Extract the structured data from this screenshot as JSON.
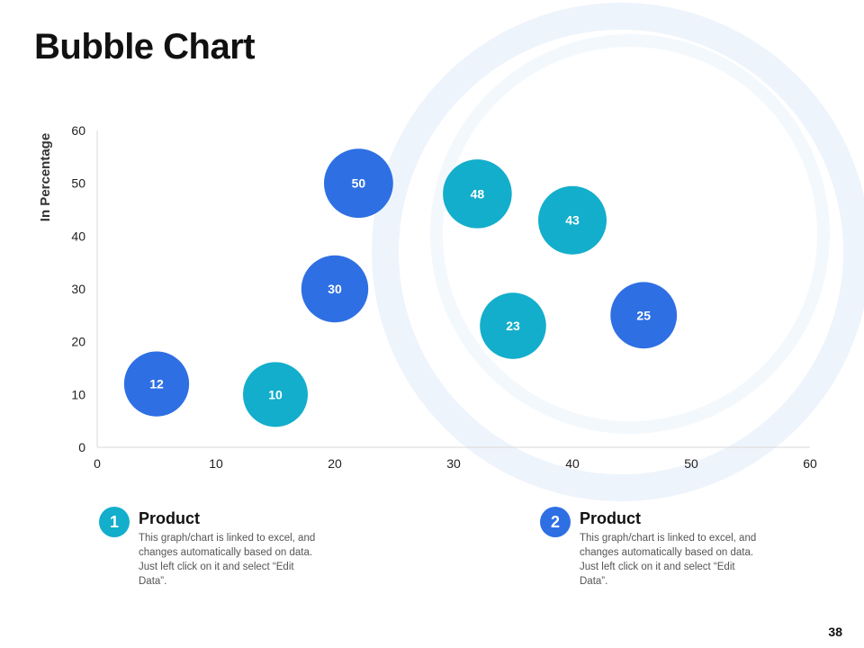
{
  "slide": {
    "title": "Bubble Chart",
    "page_number": "38"
  },
  "colors": {
    "teal": "#13AECB",
    "blue": "#2E6FE3"
  },
  "chart_data": {
    "type": "bubble",
    "title": "Bubble Chart",
    "xlabel": "",
    "ylabel": "In Percentage",
    "xlim": [
      0,
      60
    ],
    "ylim": [
      0,
      60
    ],
    "xticks": [
      0,
      10,
      20,
      30,
      40,
      50,
      60
    ],
    "yticks": [
      0,
      10,
      20,
      30,
      40,
      50,
      60
    ],
    "series": [
      {
        "name": "Product 1",
        "color": "#13AECB",
        "points": [
          {
            "x": 15,
            "y": 10,
            "size": 10
          },
          {
            "x": 32,
            "y": 48,
            "size": 48
          },
          {
            "x": 35,
            "y": 23,
            "size": 23
          },
          {
            "x": 40,
            "y": 43,
            "size": 43
          }
        ]
      },
      {
        "name": "Product 2",
        "color": "#2E6FE3",
        "points": [
          {
            "x": 5,
            "y": 12,
            "size": 12
          },
          {
            "x": 20,
            "y": 30,
            "size": 30
          },
          {
            "x": 22,
            "y": 50,
            "size": 50
          },
          {
            "x": 46,
            "y": 25,
            "size": 25
          }
        ]
      }
    ]
  },
  "legend": [
    {
      "number": "1",
      "title": "Product",
      "text": "This graph/chart is linked to excel, and changes automatically based on data. Just left click on it and select “Edit Data”."
    },
    {
      "number": "2",
      "title": "Product",
      "text": "This graph/chart is linked to excel, and changes automatically based on data. Just left click on it and select “Edit Data”."
    }
  ]
}
